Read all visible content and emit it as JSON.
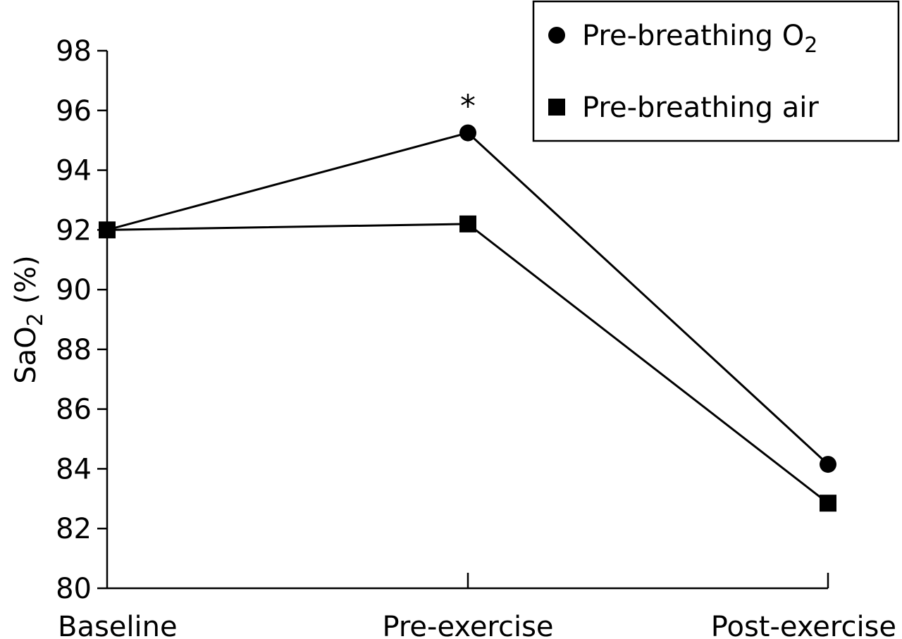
{
  "chart_data": {
    "type": "line",
    "categories": [
      "Baseline",
      "Pre-exercise",
      "Post-exercise"
    ],
    "ylim": [
      80,
      98
    ],
    "yticks": [
      80,
      82,
      84,
      86,
      88,
      90,
      92,
      94,
      96,
      98
    ],
    "ylabel_main": "SaO",
    "ylabel_sub": "2",
    "ylabel_unit": " (%)",
    "grid": false,
    "legend_position": "top-right",
    "series": [
      {
        "name_main": "Pre-breathing O",
        "name_sub": "2",
        "marker": "circle",
        "values": [
          92.0,
          95.25,
          84.15
        ]
      },
      {
        "name_main": "Pre-breathing air",
        "name_sub": "",
        "marker": "square",
        "values": [
          92.0,
          92.2,
          82.85
        ]
      }
    ],
    "annotations": [
      {
        "text": "*",
        "category_index": 1,
        "y": 96.5
      }
    ]
  }
}
